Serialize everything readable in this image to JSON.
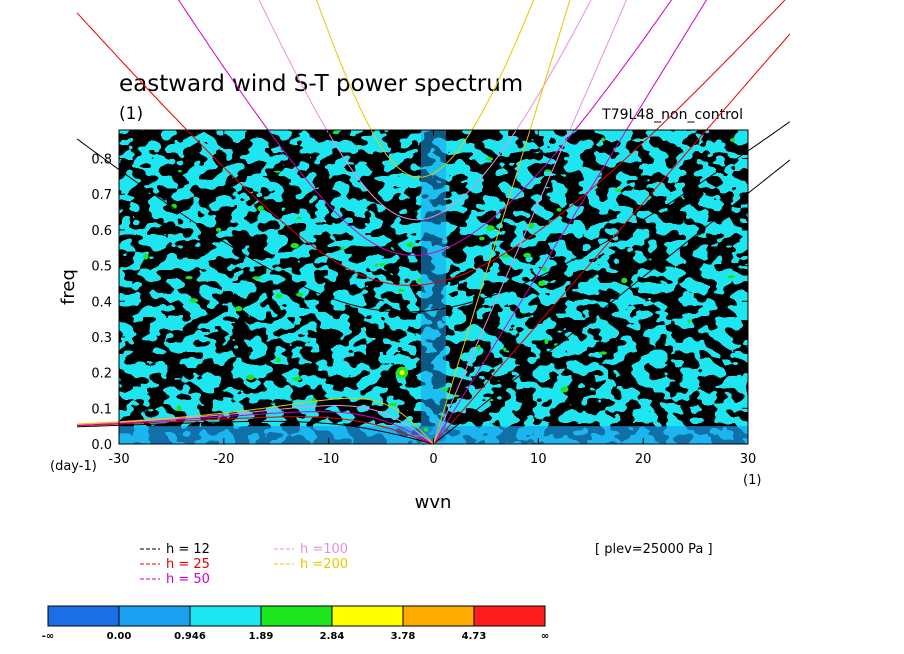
{
  "chart_data": {
    "type": "heatmap",
    "title": "eastward wind S-T power spectrum",
    "subtitle": "(1)",
    "run_label": "T79L48_non_control",
    "xlabel": "wvn",
    "ylabel": "freq",
    "x_unit_label": "(1)",
    "y_unit_label": "(day-1)",
    "xlim": [
      -30,
      30
    ],
    "ylim": [
      0,
      0.88
    ],
    "xticks": [
      -30,
      -20,
      -10,
      0,
      10,
      20,
      30
    ],
    "yticks": [
      0.0,
      0.1,
      0.2,
      0.3,
      0.4,
      0.5,
      0.6,
      0.7,
      0.8
    ],
    "xtick_labels": [
      "-30",
      "-20",
      "-10",
      "0",
      "10",
      "20",
      "30"
    ],
    "ytick_labels": [
      "0.0",
      "0.1",
      "0.2",
      "0.3",
      "0.4",
      "0.5",
      "0.6",
      "0.7",
      "0.8"
    ],
    "level_note": "[ plev=25000 Pa ]",
    "colorbar": {
      "labels": [
        "-∞",
        "0.00",
        "0.946",
        "1.89",
        "2.84",
        "3.78",
        "4.73",
        "∞"
      ],
      "colors": [
        "#1a6fe6",
        "#1aa0f0",
        "#1ee6f0",
        "#1ee61e",
        "#ffff00",
        "#ffaa00",
        "#ff1e1e"
      ]
    },
    "dispersion_curves": [
      {
        "label": "h = 12",
        "h": 12,
        "color": "#000000"
      },
      {
        "label": "h = 25",
        "h": 25,
        "color": "#e60000"
      },
      {
        "label": "h = 50",
        "h": 50,
        "color": "#d000c8"
      },
      {
        "label": "h =100",
        "h": 100,
        "color": "#e890e0"
      },
      {
        "label": "h =200",
        "h": 200,
        "color": "#e6c800"
      }
    ],
    "features": [
      {
        "kind": "peak",
        "x": -3,
        "y": 0.2,
        "level": "2.84-3.78"
      }
    ]
  }
}
